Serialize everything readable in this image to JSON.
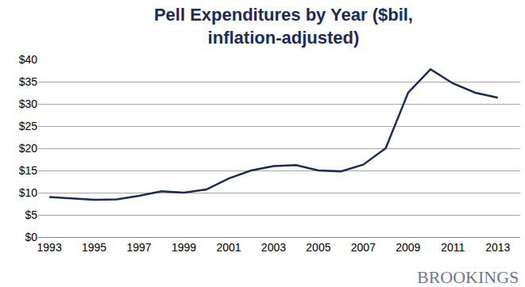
{
  "chart_data": {
    "type": "line",
    "title": "Pell Expenditures by Year ($bil,\ninflation-adjusted)",
    "x": [
      1993,
      1994,
      1995,
      1996,
      1997,
      1998,
      1999,
      2000,
      2001,
      2002,
      2003,
      2004,
      2005,
      2006,
      2007,
      2008,
      2009,
      2010,
      2011,
      2012,
      2013
    ],
    "values": [
      9.0,
      8.7,
      8.4,
      8.5,
      9.3,
      10.3,
      10.0,
      10.7,
      13.2,
      15.0,
      16.0,
      16.2,
      15.0,
      14.8,
      16.3,
      20.0,
      32.5,
      37.8,
      34.6,
      32.5,
      31.4
    ],
    "color": "#1c2a57",
    "xlim": [
      1992.5,
      2014
    ],
    "xticks": [
      1993,
      1995,
      1997,
      1999,
      2001,
      2003,
      2005,
      2007,
      2009,
      2011,
      2013
    ],
    "ylim": [
      0,
      40
    ],
    "yticks": [
      {
        "value": 0,
        "label": "$0"
      },
      {
        "value": 5,
        "label": "$5"
      },
      {
        "value": 10,
        "label": "$10"
      },
      {
        "value": 15,
        "label": "$15"
      },
      {
        "value": 20,
        "label": "$20"
      },
      {
        "value": 25,
        "label": "$25"
      },
      {
        "value": 30,
        "label": "$30"
      },
      {
        "value": 35,
        "label": "$35"
      },
      {
        "value": 40,
        "label": "$40"
      }
    ],
    "grid": true,
    "annotations": [
      "BROOKINGS"
    ]
  }
}
